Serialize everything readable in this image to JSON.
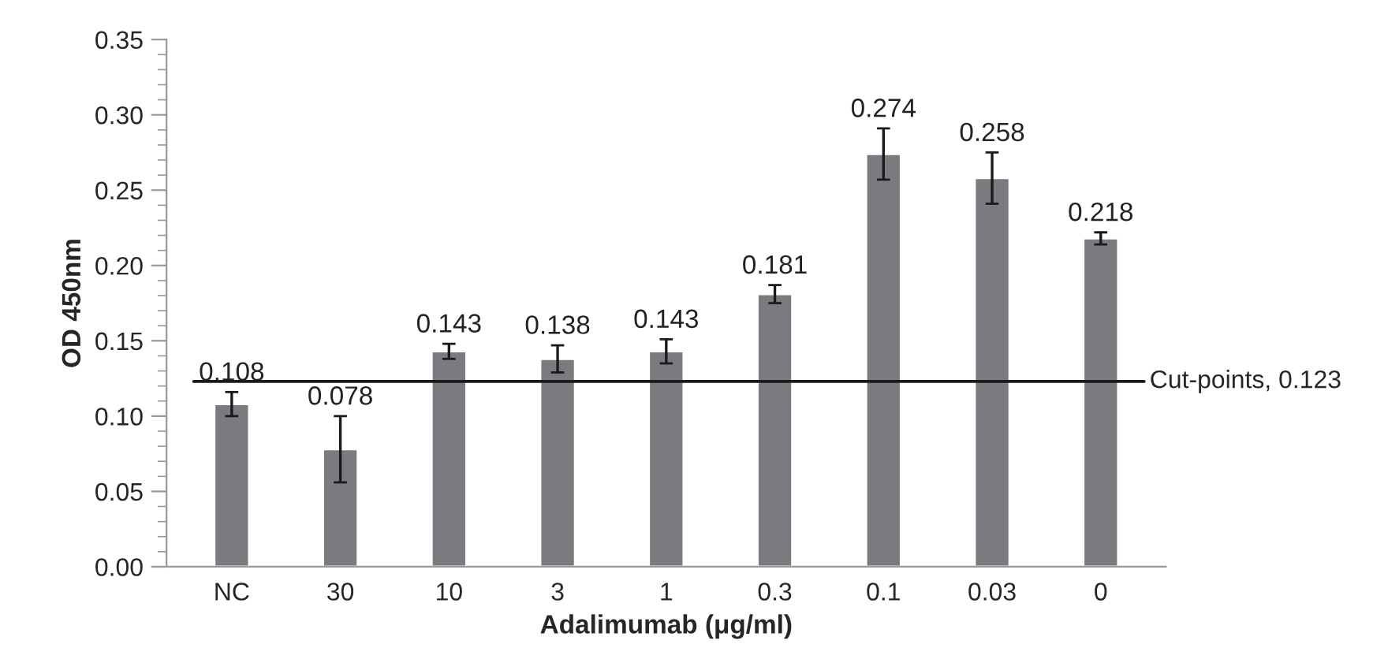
{
  "chart_data": {
    "type": "bar",
    "xlabel": "Adalimumab (μg/ml)",
    "ylabel": "OD 450nm",
    "categories": [
      "NC",
      "30",
      "10",
      "3",
      "1",
      "0.3",
      "0.1",
      "0.03",
      "0"
    ],
    "values": [
      0.108,
      0.078,
      0.143,
      0.138,
      0.143,
      0.181,
      0.274,
      0.258,
      0.218
    ],
    "errors": [
      0.008,
      0.022,
      0.005,
      0.009,
      0.008,
      0.006,
      0.017,
      0.017,
      0.004
    ],
    "color": "#7a7b7f",
    "data_labels": true,
    "ylim": [
      0,
      0.35
    ],
    "yticks": [
      {
        "value": 0,
        "label": "0.00"
      },
      {
        "value": 0.05,
        "label": "0.05"
      },
      {
        "value": 0.1,
        "label": "0.10"
      },
      {
        "value": 0.15,
        "label": "0.15"
      },
      {
        "value": 0.2,
        "label": "0.20"
      },
      {
        "value": 0.25,
        "label": "0.25"
      },
      {
        "value": 0.3,
        "label": "0.30"
      },
      {
        "value": 0.35,
        "label": "0.35"
      }
    ],
    "ref_lines": [
      {
        "axis": "y",
        "value": 0.123,
        "label": "Cut-points, 0.123",
        "color": "#1a1a1a"
      }
    ],
    "grid": false,
    "legend": false
  }
}
